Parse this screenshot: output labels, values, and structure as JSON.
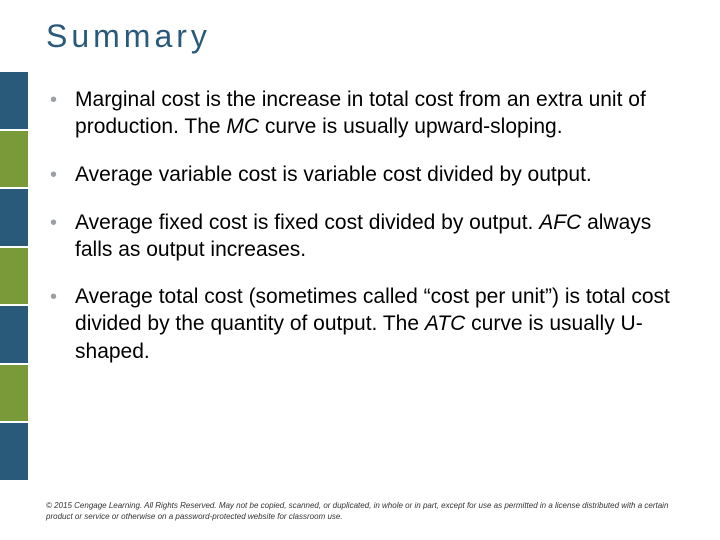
{
  "title": {
    "text": "Summary",
    "color": "#2a5a7a",
    "fontsize": 32,
    "letterspacing": 4
  },
  "sidebar": {
    "block_colors": [
      "#2a5a7a",
      "#7a9a3a",
      "#2a5a7a",
      "#7a9a3a",
      "#2a5a7a",
      "#7a9a3a",
      "#2a5a7a"
    ],
    "width": 28
  },
  "bullets": {
    "marker": "•",
    "marker_color": "#9aa0a6",
    "items": [
      {
        "text_html": "Marginal cost is the increase in total cost from an extra unit of production.  The <span class=\"ital\">MC</span> curve is usually upward-sloping."
      },
      {
        "text_html": "Average variable cost is variable cost divided by output."
      },
      {
        "text_html": "Average fixed cost is fixed cost divided by output.  <span class=\"ital\">AFC</span> always falls as output increases."
      },
      {
        "text_html": "Average total cost (sometimes called “cost per unit”) is total cost divided by the quantity of output.  The <span class=\"ital\">ATC</span> curve is usually U-shaped."
      }
    ],
    "text_fontsize": 21
  },
  "copyright": {
    "text": "© 2015 Cengage Learning. All Rights Reserved. May not be copied, scanned, or duplicated, in whole or in part, except for use as permitted in a license distributed with a certain product or service or otherwise on a password-protected website for classroom use."
  }
}
